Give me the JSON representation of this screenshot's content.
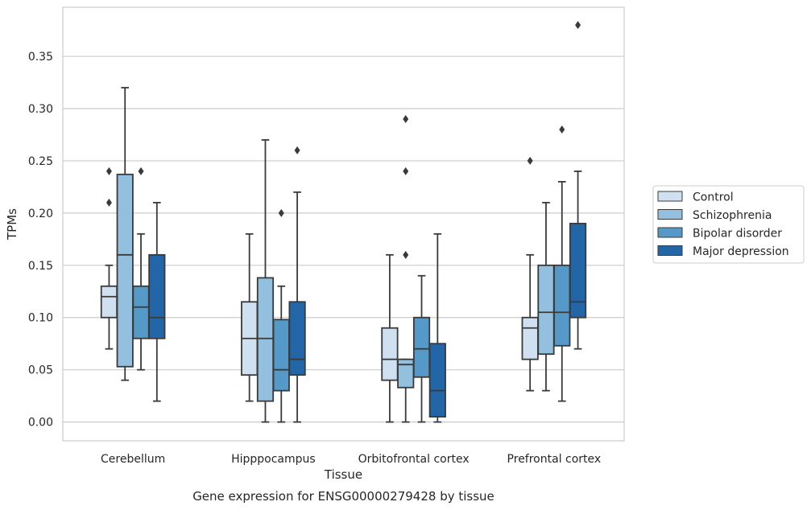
{
  "chart_data": {
    "type": "box",
    "xlabel": "Tissue",
    "ylabel": "TPMs",
    "caption": "Gene expression for ENSG00000279428 by tissue",
    "ylim": [
      -0.018,
      0.397
    ],
    "yticks": [
      "0.00",
      "0.05",
      "0.10",
      "0.15",
      "0.20",
      "0.25",
      "0.30",
      "0.35"
    ],
    "grid": "horizontal",
    "legend_position": "right",
    "categories": [
      "Cerebellum",
      "Hipppocampus",
      "Orbitofrontal cortex",
      "Prefrontal cortex"
    ],
    "series": [
      {
        "name": "Control",
        "color": "#cfe0f1",
        "boxes": [
          {
            "whisker_low": 0.07,
            "q1": 0.1,
            "median": 0.12,
            "q3": 0.13,
            "whisker_high": 0.15,
            "outliers": [
              0.21,
              0.24
            ]
          },
          {
            "whisker_low": 0.02,
            "q1": 0.045,
            "median": 0.08,
            "q3": 0.115,
            "whisker_high": 0.18,
            "outliers": []
          },
          {
            "whisker_low": 0.0,
            "q1": 0.04,
            "median": 0.06,
            "q3": 0.09,
            "whisker_high": 0.16,
            "outliers": []
          },
          {
            "whisker_low": 0.03,
            "q1": 0.06,
            "median": 0.09,
            "q3": 0.1,
            "whisker_high": 0.16,
            "outliers": [
              0.25
            ]
          }
        ]
      },
      {
        "name": "Schizophrenia",
        "color": "#93c0de",
        "boxes": [
          {
            "whisker_low": 0.04,
            "q1": 0.053,
            "median": 0.16,
            "q3": 0.237,
            "whisker_high": 0.32,
            "outliers": []
          },
          {
            "whisker_low": 0.0,
            "q1": 0.02,
            "median": 0.08,
            "q3": 0.138,
            "whisker_high": 0.27,
            "outliers": []
          },
          {
            "whisker_low": 0.0,
            "q1": 0.033,
            "median": 0.055,
            "q3": 0.06,
            "whisker_high": 0.06,
            "outliers": [
              0.16,
              0.24,
              0.29
            ]
          },
          {
            "whisker_low": 0.03,
            "q1": 0.065,
            "median": 0.105,
            "q3": 0.15,
            "whisker_high": 0.21,
            "outliers": []
          }
        ]
      },
      {
        "name": "Bipolar disorder",
        "color": "#5599c8",
        "boxes": [
          {
            "whisker_low": 0.05,
            "q1": 0.08,
            "median": 0.11,
            "q3": 0.13,
            "whisker_high": 0.18,
            "outliers": [
              0.24
            ]
          },
          {
            "whisker_low": 0.0,
            "q1": 0.03,
            "median": 0.05,
            "q3": 0.098,
            "whisker_high": 0.13,
            "outliers": [
              0.2
            ]
          },
          {
            "whisker_low": 0.0,
            "q1": 0.043,
            "median": 0.07,
            "q3": 0.1,
            "whisker_high": 0.14,
            "outliers": []
          },
          {
            "whisker_low": 0.02,
            "q1": 0.073,
            "median": 0.105,
            "q3": 0.15,
            "whisker_high": 0.23,
            "outliers": [
              0.28
            ]
          }
        ]
      },
      {
        "name": "Major depression",
        "color": "#2366a8",
        "boxes": [
          {
            "whisker_low": 0.02,
            "q1": 0.08,
            "median": 0.1,
            "q3": 0.16,
            "whisker_high": 0.21,
            "outliers": []
          },
          {
            "whisker_low": 0.0,
            "q1": 0.045,
            "median": 0.06,
            "q3": 0.115,
            "whisker_high": 0.22,
            "outliers": [
              0.26
            ]
          },
          {
            "whisker_low": 0.0,
            "q1": 0.005,
            "median": 0.03,
            "q3": 0.075,
            "whisker_high": 0.18,
            "outliers": []
          },
          {
            "whisker_low": 0.07,
            "q1": 0.1,
            "median": 0.115,
            "q3": 0.19,
            "whisker_high": 0.24,
            "outliers": [
              0.38
            ]
          }
        ]
      }
    ]
  }
}
